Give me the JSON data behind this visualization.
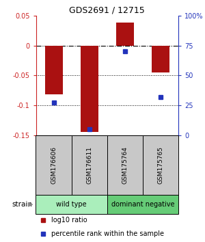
{
  "title": "GDS2691 / 12715",
  "samples": [
    "GSM176606",
    "GSM176611",
    "GSM175764",
    "GSM175765"
  ],
  "log10_ratio": [
    -0.082,
    -0.145,
    0.038,
    -0.045
  ],
  "percentile_rank": [
    27,
    5,
    70,
    32
  ],
  "ylim_left": [
    -0.15,
    0.05
  ],
  "ylim_right": [
    0,
    100
  ],
  "yticks_left": [
    -0.15,
    -0.1,
    -0.05,
    0.0,
    0.05
  ],
  "yticks_right": [
    0,
    25,
    50,
    75,
    100
  ],
  "ytick_labels_left": [
    "-0.15",
    "-0.1",
    "-0.05",
    "0",
    "0.05"
  ],
  "ytick_labels_right": [
    "0",
    "25",
    "50",
    "75",
    "100%"
  ],
  "hlines_dotted": [
    -0.05,
    -0.1
  ],
  "hline_dashdot": 0.0,
  "bar_color": "#aa1111",
  "dot_color": "#2233bb",
  "bar_width": 0.5,
  "legend_red_label": "log10 ratio",
  "legend_blue_label": "percentile rank within the sample",
  "strain_label": "strain",
  "background_color": "#ffffff",
  "plot_bg": "#ffffff",
  "sample_box_color": "#c8c8c8",
  "wt_color": "#aaeebb",
  "dn_color": "#66cc77",
  "axis_color_left": "#cc2222",
  "axis_color_right": "#2233bb",
  "group_spans": [
    [
      0,
      1,
      "wild type"
    ],
    [
      2,
      3,
      "dominant negative"
    ]
  ]
}
